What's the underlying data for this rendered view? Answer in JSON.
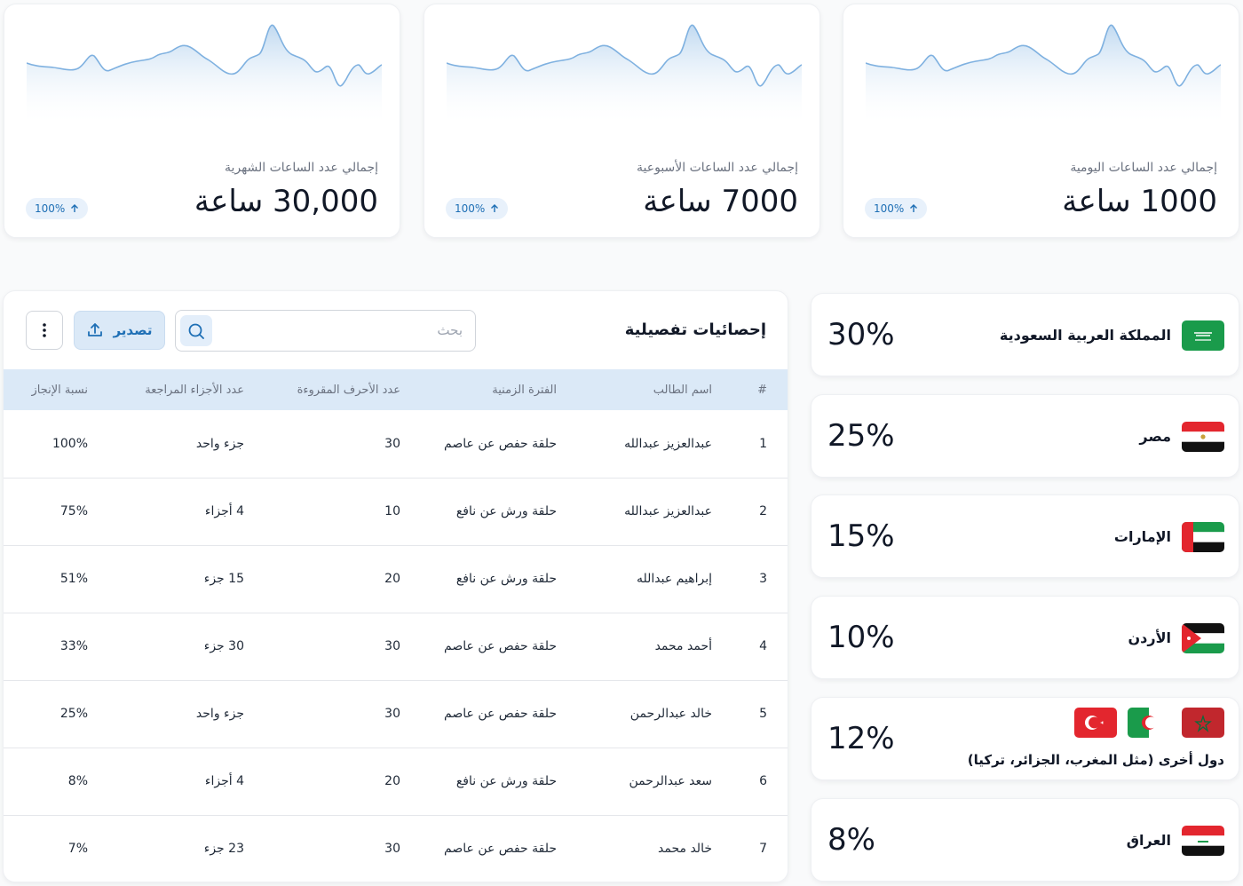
{
  "stats": [
    {
      "label": "إجمالي عدد الساعات الشهرية",
      "value": "30,000 ساعة",
      "badge": "100%"
    },
    {
      "label": "إجمالي عدد الساعات الأسبوعية",
      "value": "7000 ساعة",
      "badge": "100%"
    },
    {
      "label": "إجمالي عدد الساعات اليومية",
      "value": "1000 ساعة",
      "badge": "100%"
    }
  ],
  "table": {
    "title": "إحصائيات تفصيلية",
    "search_placeholder": "بحث",
    "export_label": "تصدير",
    "columns": [
      "#",
      "اسم الطالب",
      "الفترة الزمنية",
      "عدد الأحرف المقروءة",
      "عدد الأجزاء المراجعة",
      "نسبة الإنجاز"
    ],
    "rows": [
      [
        "1",
        "عبدالعزيز عبدالله",
        "حلقة حفص عن عاصم",
        "30",
        "جزء واحد",
        "100%"
      ],
      [
        "2",
        "عبدالعزيز عبدالله",
        "حلقة ورش عن نافع",
        "10",
        "4 أجزاء",
        "75%"
      ],
      [
        "3",
        "إبراهيم عبدالله",
        "حلقة ورش عن نافع",
        "20",
        "15 جزء",
        "51%"
      ],
      [
        "4",
        "أحمد محمد",
        "حلقة حفص عن عاصم",
        "30",
        "30 جزء",
        "33%"
      ],
      [
        "5",
        "خالد عبدالرحمن",
        "حلقة حفص عن عاصم",
        "30",
        "جزء واحد",
        "25%"
      ],
      [
        "6",
        "سعد عبدالرحمن",
        "حلقة ورش عن نافع",
        "20",
        "4 أجزاء",
        "8%"
      ],
      [
        "7",
        "خالد محمد",
        "حلقة حفص عن عاصم",
        "30",
        "23 جزء",
        "7%"
      ]
    ]
  },
  "countries": [
    {
      "name": "المملكة العربية السعودية",
      "percent": "30%",
      "flag": "saudi-flag-icon"
    },
    {
      "name": "مصر",
      "percent": "25%",
      "flag": "egypt-flag-icon"
    },
    {
      "name": "الإمارات",
      "percent": "15%",
      "flag": "uae-flag-icon"
    },
    {
      "name": "الأردن",
      "percent": "10%",
      "flag": "jordan-flag-icon"
    },
    {
      "name": "دول أخرى (مثل المغرب، الجزائر، تركيا)",
      "percent": "12%",
      "flags": [
        "turkey-flag-icon",
        "algeria-flag-icon",
        "morocco-flag-icon"
      ]
    },
    {
      "name": "العراق",
      "percent": "8%",
      "flag": "iraq-flag-icon"
    }
  ],
  "colors": {
    "accent": "#1e6fb5",
    "accent_light": "#dbe9f7",
    "text": "#111827",
    "muted": "#6b7280"
  }
}
